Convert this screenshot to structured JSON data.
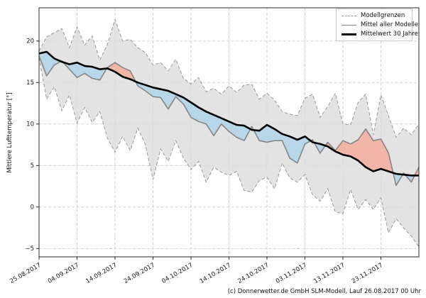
{
  "caption": "(c) Donnerwetter.de GmbH SLM-Modell, Lauf 26.08.2017 00 Uhr",
  "legend": {
    "position": "upper right",
    "items": [
      {
        "label": "Modellgrenzen",
        "style": "dashed-gray-line"
      },
      {
        "label": "Mittel aller Modelle",
        "style": "solid-gray-line"
      },
      {
        "label": "Mittelwert 30 Jahre",
        "style": "thick-black-line"
      }
    ]
  },
  "chart_data": {
    "type": "line",
    "title": "",
    "xlabel": "",
    "ylabel": "Mittlere Lufttemperatur [°]",
    "grid": true,
    "legend_position": "upper right",
    "xlim_days": [
      0,
      100
    ],
    "ylim": [
      -6,
      24
    ],
    "x_start_date": "25.08.2017",
    "x_ticks": {
      "days": [
        0,
        10,
        20,
        30,
        40,
        50,
        60,
        70,
        80,
        90
      ],
      "labels": [
        "25.08.2017",
        "04.09.2017",
        "14.09.2017",
        "24.09.2017",
        "04.10.2017",
        "14.10.2017",
        "24.10.2017",
        "03.11.2017",
        "13.11.2017",
        "23.11.2017"
      ]
    },
    "y_ticks": {
      "values": [
        -5,
        0,
        5,
        10,
        15,
        20
      ],
      "labels": [
        "−5",
        "0",
        "5",
        "10",
        "15",
        "20"
      ]
    },
    "x_days": [
      0,
      2,
      4,
      6,
      8,
      10,
      12,
      14,
      16,
      18,
      20,
      22,
      24,
      26,
      28,
      30,
      32,
      34,
      36,
      38,
      40,
      42,
      44,
      46,
      48,
      50,
      52,
      54,
      56,
      58,
      60,
      62,
      64,
      66,
      68,
      70,
      72,
      74,
      76,
      78,
      80,
      82,
      84,
      86,
      88,
      90,
      92,
      94,
      96,
      98,
      100
    ],
    "series": [
      {
        "name": "Modellgrenzen oben",
        "role": "upper_bound",
        "values": [
          18.8,
          20.5,
          21.0,
          21.5,
          19.2,
          21.7,
          19.5,
          20.6,
          17.7,
          19.6,
          22.6,
          20.0,
          20.2,
          19.2,
          18.6,
          17.1,
          17.4,
          16.4,
          17.8,
          15.5,
          14.8,
          15.6,
          13.9,
          14.3,
          13.6,
          14.6,
          13.8,
          14.7,
          14.8,
          13.0,
          13.7,
          12.9,
          11.5,
          11.2,
          11.0,
          13.1,
          13.6,
          10.8,
          12.1,
          13.7,
          10.0,
          9.9,
          12.6,
          13.6,
          8.7,
          13.5,
          11.0,
          8.4,
          9.5,
          8.7,
          10.0
        ]
      },
      {
        "name": "Modellgrenzen unten",
        "role": "lower_bound",
        "values": [
          18.0,
          13.0,
          14.5,
          11.6,
          13.5,
          10.1,
          12.0,
          10.2,
          11.5,
          8.3,
          6.6,
          8.5,
          6.8,
          9.5,
          7.5,
          3.3,
          7.0,
          5.5,
          8.0,
          5.9,
          4.5,
          5.5,
          3.0,
          4.8,
          4.2,
          3.8,
          4.3,
          2.0,
          1.8,
          3.2,
          3.6,
          2.2,
          5.3,
          3.5,
          3.0,
          3.9,
          1.5,
          0.7,
          2.2,
          -0.6,
          -0.8,
          2.1,
          -0.3,
          0.9,
          -0.3,
          1.1,
          -3.1,
          -1.4,
          -2.5,
          -3.5,
          -4.8
        ]
      },
      {
        "name": "Mittel aller Modelle",
        "role": "model_mean",
        "values": [
          18.2,
          15.8,
          17.1,
          17.6,
          16.6,
          15.6,
          16.1,
          15.5,
          15.3,
          16.8,
          17.4,
          16.8,
          16.4,
          14.6,
          14.0,
          13.3,
          13.2,
          11.8,
          13.3,
          12.4,
          10.8,
          10.3,
          10.0,
          8.6,
          10.0,
          9.1,
          8.4,
          8.0,
          9.7,
          8.0,
          7.8,
          8.0,
          8.0,
          5.9,
          5.3,
          7.6,
          8.1,
          6.5,
          7.8,
          6.8,
          8.0,
          7.6,
          8.1,
          9.4,
          8.0,
          8.2,
          6.5,
          2.6,
          4.1,
          3.0,
          4.8
        ]
      },
      {
        "name": "Mittelwert 30 Jahre",
        "role": "climate_mean",
        "values": [
          18.5,
          18.7,
          17.9,
          17.5,
          17.2,
          17.4,
          17.0,
          16.9,
          16.6,
          16.7,
          16.3,
          15.7,
          15.4,
          15.0,
          14.7,
          14.4,
          14.2,
          14.0,
          13.6,
          13.2,
          12.6,
          12.0,
          11.5,
          11.1,
          10.7,
          10.3,
          9.9,
          9.8,
          9.3,
          9.2,
          9.9,
          9.4,
          8.8,
          8.5,
          8.1,
          8.5,
          7.8,
          7.6,
          7.3,
          6.7,
          6.3,
          6.1,
          5.6,
          4.8,
          4.3,
          4.6,
          4.3,
          4.0,
          3.9,
          3.8,
          3.8
        ]
      }
    ],
    "colors": {
      "grid": "#cbcbcb",
      "spine": "#2b2b2b",
      "envelope_fill": "#dcdcdc",
      "bound_line": "#979797",
      "model_mean_line": "#858585",
      "climate_mean_line": "#000000",
      "warm_anomaly_fill": "#f3b5a7",
      "cold_anomaly_fill": "#b7d7e8",
      "tick_text": "#1a1a1a"
    }
  }
}
